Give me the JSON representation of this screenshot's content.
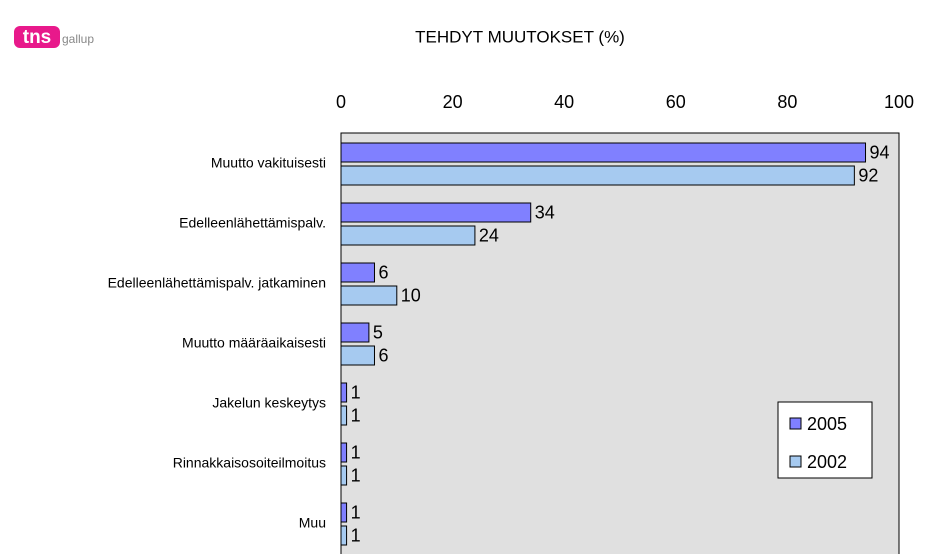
{
  "logo": {
    "brand": "tns",
    "sub": "gallup"
  },
  "chart_data": {
    "type": "hbar",
    "title": "TEHDYT MUUTOKSET (%)",
    "categories": [
      "Muutto vakituisesti",
      "Edelleenlähettämispalv.",
      "Edelleenlähettämispalv. jatkaminen",
      "Muutto määräaikaisesti",
      "Jakelun keskeytys",
      "Rinnakkaisosoiteilmoitus",
      "Muu"
    ],
    "series": [
      {
        "name": "2005",
        "color": "#8080ff",
        "values": [
          94,
          34,
          6,
          5,
          1,
          1,
          1
        ]
      },
      {
        "name": "2002",
        "color": "#a6caf0",
        "values": [
          92,
          24,
          10,
          6,
          1,
          1,
          1
        ]
      }
    ],
    "xlim": [
      0,
      100
    ],
    "xticks": [
      0,
      20,
      40,
      60,
      80,
      100
    ],
    "legend": "lower right",
    "grid": false,
    "background": "#e0e0e0"
  }
}
